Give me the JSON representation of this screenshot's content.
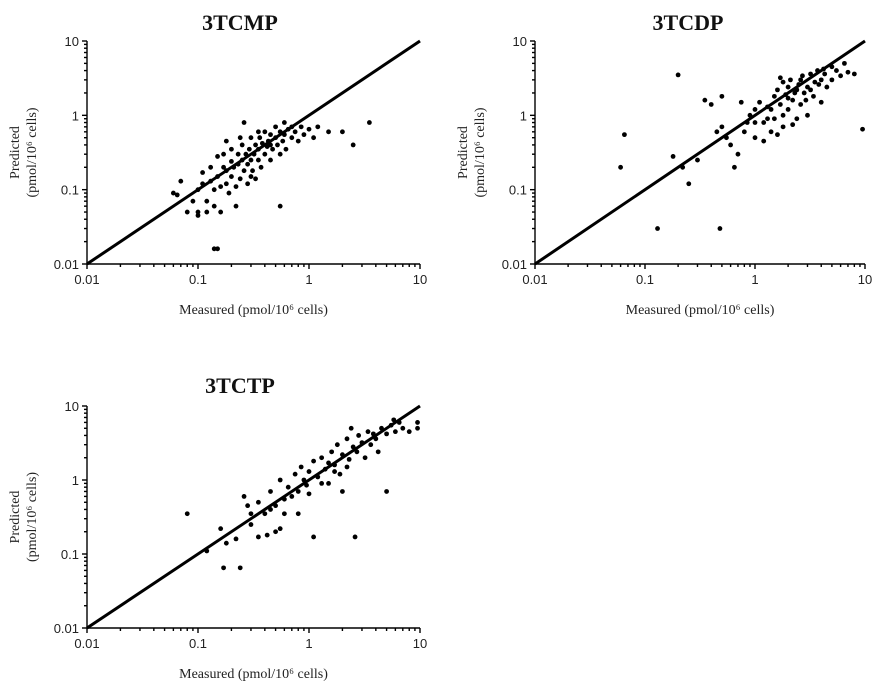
{
  "figure": {
    "colors": {
      "ink": "#000000",
      "background": "#ffffff"
    }
  },
  "chart_data": [
    {
      "type": "scatter",
      "title": "3TCMP",
      "xlabel": "Measured (pmol/10⁶ cells)",
      "ylabel": "Predicted (pmol/10⁶ cells)",
      "xscale": "log",
      "yscale": "log",
      "xlim": [
        0.01,
        10
      ],
      "ylim": [
        0.01,
        10
      ],
      "xticks": [
        "0.01",
        "0.1",
        "1",
        "10"
      ],
      "yticks": [
        "0.01",
        "0.1",
        "1",
        "10"
      ],
      "reference_line": "y = x",
      "grid": false,
      "points": [
        [
          0.06,
          0.09
        ],
        [
          0.065,
          0.085
        ],
        [
          0.07,
          0.13
        ],
        [
          0.08,
          0.05
        ],
        [
          0.09,
          0.07
        ],
        [
          0.1,
          0.1
        ],
        [
          0.1,
          0.05
        ],
        [
          0.11,
          0.12
        ],
        [
          0.11,
          0.17
        ],
        [
          0.12,
          0.07
        ],
        [
          0.12,
          0.05
        ],
        [
          0.13,
          0.13
        ],
        [
          0.13,
          0.2
        ],
        [
          0.14,
          0.1
        ],
        [
          0.14,
          0.06
        ],
        [
          0.15,
          0.28
        ],
        [
          0.15,
          0.15
        ],
        [
          0.16,
          0.11
        ],
        [
          0.16,
          0.05
        ],
        [
          0.17,
          0.2
        ],
        [
          0.17,
          0.3
        ],
        [
          0.18,
          0.12
        ],
        [
          0.18,
          0.18
        ],
        [
          0.19,
          0.09
        ],
        [
          0.2,
          0.24
        ],
        [
          0.2,
          0.15
        ],
        [
          0.2,
          0.35
        ],
        [
          0.21,
          0.2
        ],
        [
          0.22,
          0.11
        ],
        [
          0.22,
          0.06
        ],
        [
          0.23,
          0.22
        ],
        [
          0.23,
          0.3
        ],
        [
          0.24,
          0.14
        ],
        [
          0.25,
          0.25
        ],
        [
          0.25,
          0.4
        ],
        [
          0.26,
          0.18
        ],
        [
          0.27,
          0.3
        ],
        [
          0.28,
          0.22
        ],
        [
          0.28,
          0.12
        ],
        [
          0.29,
          0.35
        ],
        [
          0.3,
          0.25
        ],
        [
          0.3,
          0.5
        ],
        [
          0.31,
          0.18
        ],
        [
          0.32,
          0.3
        ],
        [
          0.33,
          0.4
        ],
        [
          0.33,
          0.14
        ],
        [
          0.35,
          0.35
        ],
        [
          0.35,
          0.25
        ],
        [
          0.36,
          0.5
        ],
        [
          0.37,
          0.2
        ],
        [
          0.38,
          0.42
        ],
        [
          0.4,
          0.3
        ],
        [
          0.4,
          0.6
        ],
        [
          0.42,
          0.38
        ],
        [
          0.43,
          0.45
        ],
        [
          0.45,
          0.25
        ],
        [
          0.45,
          0.55
        ],
        [
          0.47,
          0.35
        ],
        [
          0.5,
          0.5
        ],
        [
          0.5,
          0.7
        ],
        [
          0.52,
          0.4
        ],
        [
          0.55,
          0.6
        ],
        [
          0.55,
          0.3
        ],
        [
          0.58,
          0.45
        ],
        [
          0.6,
          0.8
        ],
        [
          0.6,
          0.55
        ],
        [
          0.62,
          0.35
        ],
        [
          0.65,
          0.65
        ],
        [
          0.7,
          0.5
        ],
        [
          0.7,
          0.7
        ],
        [
          0.75,
          0.6
        ],
        [
          0.8,
          0.45
        ],
        [
          0.85,
          0.7
        ],
        [
          0.9,
          0.55
        ],
        [
          1.0,
          0.65
        ],
        [
          1.1,
          0.5
        ],
        [
          1.2,
          0.7
        ],
        [
          1.5,
          0.6
        ],
        [
          2.0,
          0.6
        ],
        [
          2.5,
          0.4
        ],
        [
          3.5,
          0.8
        ],
        [
          0.14,
          0.016
        ],
        [
          0.15,
          0.016
        ],
        [
          0.55,
          0.06
        ],
        [
          0.1,
          0.045
        ],
        [
          0.26,
          0.8
        ],
        [
          0.35,
          0.6
        ],
        [
          0.45,
          0.4
        ],
        [
          0.18,
          0.45
        ],
        [
          0.24,
          0.5
        ],
        [
          0.3,
          0.15
        ]
      ]
    },
    {
      "type": "scatter",
      "title": "3TCDP",
      "xlabel": "Measured (pmol/10⁶ cells)",
      "ylabel": "Predicted (pmol/10⁶ cells)",
      "xscale": "log",
      "yscale": "log",
      "xlim": [
        0.01,
        10
      ],
      "ylim": [
        0.01,
        10
      ],
      "xticks": [
        "0.01",
        "0.1",
        "1",
        "10"
      ],
      "yticks": [
        "0.01",
        "0.1",
        "1",
        "10"
      ],
      "reference_line": "y = x",
      "grid": false,
      "points": [
        [
          0.06,
          0.2
        ],
        [
          0.065,
          0.55
        ],
        [
          0.13,
          0.03
        ],
        [
          0.18,
          0.28
        ],
        [
          0.2,
          3.5
        ],
        [
          0.22,
          0.2
        ],
        [
          0.25,
          0.12
        ],
        [
          0.3,
          0.25
        ],
        [
          0.35,
          1.6
        ],
        [
          0.4,
          1.4
        ],
        [
          0.45,
          0.6
        ],
        [
          0.48,
          0.03
        ],
        [
          0.5,
          0.7
        ],
        [
          0.5,
          1.8
        ],
        [
          0.55,
          0.5
        ],
        [
          0.6,
          0.4
        ],
        [
          0.65,
          0.2
        ],
        [
          0.7,
          0.3
        ],
        [
          0.75,
          1.5
        ],
        [
          0.8,
          0.6
        ],
        [
          0.85,
          0.8
        ],
        [
          0.9,
          1.0
        ],
        [
          1.0,
          1.2
        ],
        [
          1.0,
          0.5
        ],
        [
          1.1,
          1.5
        ],
        [
          1.2,
          0.8
        ],
        [
          1.3,
          1.3
        ],
        [
          1.4,
          0.6
        ],
        [
          1.5,
          1.8
        ],
        [
          1.5,
          0.9
        ],
        [
          1.6,
          2.2
        ],
        [
          1.7,
          1.4
        ],
        [
          1.8,
          2.8
        ],
        [
          1.8,
          0.7
        ],
        [
          1.9,
          1.9
        ],
        [
          2.0,
          2.4
        ],
        [
          2.0,
          1.2
        ],
        [
          2.1,
          3.0
        ],
        [
          2.2,
          1.6
        ],
        [
          2.3,
          2.0
        ],
        [
          2.4,
          0.9
        ],
        [
          2.5,
          2.6
        ],
        [
          2.6,
          1.4
        ],
        [
          2.7,
          3.4
        ],
        [
          2.8,
          2.0
        ],
        [
          3.0,
          2.4
        ],
        [
          3.0,
          1.0
        ],
        [
          3.2,
          3.6
        ],
        [
          3.4,
          1.8
        ],
        [
          3.5,
          2.8
        ],
        [
          3.7,
          4.0
        ],
        [
          4.0,
          3.0
        ],
        [
          4.0,
          1.5
        ],
        [
          4.3,
          3.6
        ],
        [
          4.5,
          2.4
        ],
        [
          5.0,
          4.5
        ],
        [
          5.0,
          3.0
        ],
        [
          5.5,
          4.0
        ],
        [
          6.0,
          3.4
        ],
        [
          6.5,
          5.0
        ],
        [
          7.0,
          3.8
        ],
        [
          8.0,
          3.6
        ],
        [
          9.5,
          0.65
        ],
        [
          1.2,
          0.45
        ],
        [
          1.6,
          0.55
        ],
        [
          2.2,
          0.75
        ],
        [
          1.7,
          3.2
        ],
        [
          2.4,
          2.2
        ],
        [
          3.2,
          2.2
        ],
        [
          1.4,
          1.2
        ],
        [
          2.0,
          1.7
        ],
        [
          2.6,
          3.0
        ],
        [
          3.8,
          2.6
        ],
        [
          4.2,
          4.2
        ],
        [
          1.8,
          1.0
        ],
        [
          2.9,
          1.6
        ],
        [
          1.3,
          0.9
        ],
        [
          1.0,
          0.8
        ]
      ]
    },
    {
      "type": "scatter",
      "title": "3TCTP",
      "xlabel": "Measured (pmol/10⁶ cells)",
      "ylabel": "Predicted (pmol/10⁶ cells)",
      "xscale": "log",
      "yscale": "log",
      "xlim": [
        0.01,
        10
      ],
      "ylim": [
        0.01,
        10
      ],
      "xticks": [
        "0.01",
        "0.1",
        "1",
        "10"
      ],
      "yticks": [
        "0.01",
        "0.1",
        "1",
        "10"
      ],
      "reference_line": "y = x",
      "grid": false,
      "points": [
        [
          0.08,
          0.35
        ],
        [
          0.12,
          0.11
        ],
        [
          0.16,
          0.22
        ],
        [
          0.17,
          0.065
        ],
        [
          0.18,
          0.14
        ],
        [
          0.22,
          0.16
        ],
        [
          0.24,
          0.065
        ],
        [
          0.26,
          0.6
        ],
        [
          0.28,
          0.45
        ],
        [
          0.3,
          0.25
        ],
        [
          0.35,
          0.5
        ],
        [
          0.35,
          0.17
        ],
        [
          0.4,
          0.35
        ],
        [
          0.42,
          0.18
        ],
        [
          0.45,
          0.7
        ],
        [
          0.5,
          0.45
        ],
        [
          0.5,
          0.2
        ],
        [
          0.55,
          1.0
        ],
        [
          0.6,
          0.55
        ],
        [
          0.65,
          0.8
        ],
        [
          0.7,
          0.6
        ],
        [
          0.75,
          1.2
        ],
        [
          0.8,
          0.7
        ],
        [
          0.8,
          0.35
        ],
        [
          0.85,
          1.5
        ],
        [
          0.9,
          1.0
        ],
        [
          1.0,
          1.3
        ],
        [
          1.0,
          0.65
        ],
        [
          1.1,
          1.8
        ],
        [
          1.1,
          0.17
        ],
        [
          1.2,
          1.1
        ],
        [
          1.3,
          2.0
        ],
        [
          1.4,
          1.4
        ],
        [
          1.5,
          0.9
        ],
        [
          1.6,
          2.4
        ],
        [
          1.7,
          1.6
        ],
        [
          1.8,
          3.0
        ],
        [
          1.9,
          1.2
        ],
        [
          2.0,
          2.2
        ],
        [
          2.0,
          0.7
        ],
        [
          2.2,
          3.6
        ],
        [
          2.3,
          1.9
        ],
        [
          2.4,
          5.0
        ],
        [
          2.5,
          2.8
        ],
        [
          2.6,
          0.17
        ],
        [
          2.7,
          2.4
        ],
        [
          2.8,
          4.0
        ],
        [
          3.0,
          3.2
        ],
        [
          3.2,
          2.0
        ],
        [
          3.4,
          4.5
        ],
        [
          3.6,
          3.0
        ],
        [
          4.0,
          3.6
        ],
        [
          4.2,
          2.4
        ],
        [
          4.5,
          5.0
        ],
        [
          5.0,
          4.2
        ],
        [
          5.0,
          0.7
        ],
        [
          5.5,
          5.5
        ],
        [
          6.0,
          4.5
        ],
        [
          6.5,
          6.0
        ],
        [
          7.0,
          5.0
        ],
        [
          8.0,
          4.5
        ],
        [
          9.5,
          5.0
        ],
        [
          9.5,
          6.0
        ],
        [
          1.3,
          0.9
        ],
        [
          1.7,
          1.3
        ],
        [
          2.2,
          1.5
        ],
        [
          0.55,
          0.22
        ],
        [
          0.45,
          0.4
        ],
        [
          0.3,
          0.35
        ],
        [
          0.6,
          0.35
        ],
        [
          1.5,
          1.7
        ],
        [
          3.8,
          4.2
        ],
        [
          5.8,
          6.5
        ],
        [
          0.95,
          0.85
        ]
      ]
    }
  ]
}
